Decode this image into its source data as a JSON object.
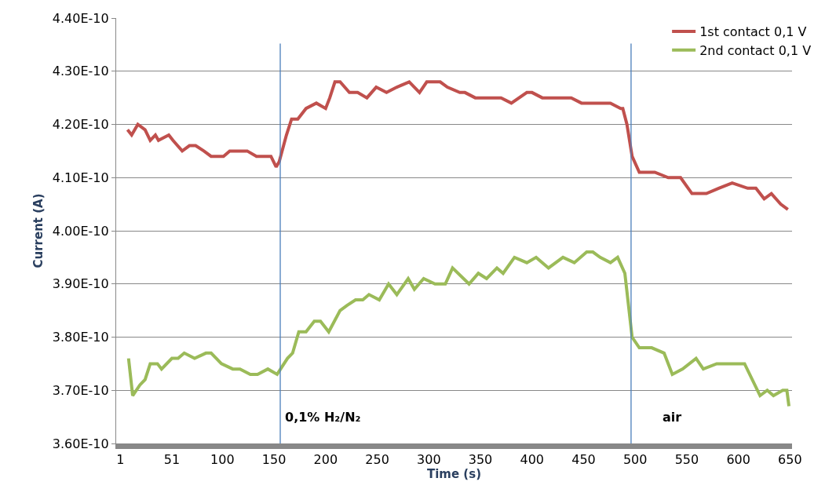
{
  "chart_data": {
    "type": "line",
    "xlabel": "Time (s)",
    "ylabel": "Current (A)",
    "xlim": [
      -3,
      652
    ],
    "xticks": [
      1,
      51,
      100,
      150,
      200,
      250,
      300,
      350,
      400,
      450,
      500,
      550,
      600,
      650
    ],
    "ylim": [
      3.6e-10,
      4.4e-10
    ],
    "yticks": [
      {
        "value": 3.6e-10,
        "label": "3.60E-10"
      },
      {
        "value": 3.7e-10,
        "label": "3.70E-10"
      },
      {
        "value": 3.8e-10,
        "label": "3.80E-10"
      },
      {
        "value": 3.9e-10,
        "label": "3.90E-10"
      },
      {
        "value": 4e-10,
        "label": "4.00E-10"
      },
      {
        "value": 4.1e-10,
        "label": "4.10E-10"
      },
      {
        "value": 4.2e-10,
        "label": "4.20E-10"
      },
      {
        "value": 4.3e-10,
        "label": "4.30E-10"
      },
      {
        "value": 4.4e-10,
        "label": "4.40E-10"
      }
    ],
    "grid": "y",
    "legend": "top right",
    "marker": "none",
    "line_style": "solid",
    "series": [
      {
        "name": "1st contact 0,1 V",
        "color": "#c0504d",
        "x": [
          8,
          12,
          18,
          25,
          30,
          35,
          38,
          48,
          52,
          61,
          68,
          74,
          82,
          89,
          97,
          101,
          107,
          114,
          120,
          124,
          133,
          140,
          147,
          152,
          155,
          162,
          167,
          173,
          181,
          191,
          200,
          204,
          209,
          214,
          223,
          231,
          240,
          249,
          259,
          269,
          281,
          291,
          298,
          311,
          318,
          330,
          335,
          345,
          357,
          370,
          380,
          395,
          400,
          410,
          420,
          430,
          438,
          448,
          457,
          468,
          476,
          486,
          488,
          492,
          497,
          504,
          512,
          519,
          532,
          544,
          555,
          569,
          581,
          594,
          609,
          617,
          625,
          632,
          641,
          648
        ],
        "values": [
          4.19e-10,
          4.18e-10,
          4.2e-10,
          4.19e-10,
          4.17e-10,
          4.18e-10,
          4.17e-10,
          4.18e-10,
          4.17e-10,
          4.15e-10,
          4.16e-10,
          4.16e-10,
          4.15e-10,
          4.14e-10,
          4.14e-10,
          4.14e-10,
          4.15e-10,
          4.15e-10,
          4.15e-10,
          4.15e-10,
          4.14e-10,
          4.14e-10,
          4.14e-10,
          4.12e-10,
          4.13e-10,
          4.18e-10,
          4.21e-10,
          4.21e-10,
          4.23e-10,
          4.24e-10,
          4.23e-10,
          4.25e-10,
          4.28e-10,
          4.28e-10,
          4.26e-10,
          4.26e-10,
          4.25e-10,
          4.27e-10,
          4.26e-10,
          4.27e-10,
          4.28e-10,
          4.26e-10,
          4.28e-10,
          4.28e-10,
          4.27e-10,
          4.26e-10,
          4.26e-10,
          4.25e-10,
          4.25e-10,
          4.25e-10,
          4.24e-10,
          4.26e-10,
          4.26e-10,
          4.25e-10,
          4.25e-10,
          4.25e-10,
          4.25e-10,
          4.24e-10,
          4.24e-10,
          4.24e-10,
          4.24e-10,
          4.23e-10,
          4.23e-10,
          4.2e-10,
          4.14e-10,
          4.11e-10,
          4.11e-10,
          4.11e-10,
          4.1e-10,
          4.1e-10,
          4.07e-10,
          4.07e-10,
          4.08e-10,
          4.09e-10,
          4.08e-10,
          4.08e-10,
          4.06e-10,
          4.07e-10,
          4.05e-10,
          4.04e-10
        ]
      },
      {
        "name": "2nd contact 0,1 V",
        "color": "#9bbb59",
        "x": [
          9,
          13,
          20,
          25,
          30,
          37,
          41,
          51,
          57,
          63,
          73,
          84,
          89,
          99,
          110,
          117,
          127,
          134,
          144,
          153,
          163,
          168,
          174,
          181,
          189,
          195,
          203,
          214,
          221,
          229,
          236,
          242,
          252,
          261,
          269,
          280,
          286,
          295,
          306,
          316,
          323,
          339,
          348,
          356,
          366,
          372,
          383,
          395,
          404,
          416,
          430,
          441,
          453,
          459,
          466,
          476,
          483,
          490,
          497,
          504,
          516,
          528,
          536,
          546,
          559,
          566,
          579,
          594,
          606,
          621,
          628,
          634,
          643,
          647,
          649
        ],
        "values": [
          3.76e-10,
          3.69e-10,
          3.71e-10,
          3.72e-10,
          3.75e-10,
          3.75e-10,
          3.74e-10,
          3.76e-10,
          3.76e-10,
          3.77e-10,
          3.76e-10,
          3.77e-10,
          3.77e-10,
          3.75e-10,
          3.74e-10,
          3.74e-10,
          3.73e-10,
          3.73e-10,
          3.74e-10,
          3.73e-10,
          3.76e-10,
          3.77e-10,
          3.81e-10,
          3.81e-10,
          3.83e-10,
          3.83e-10,
          3.81e-10,
          3.85e-10,
          3.86e-10,
          3.87e-10,
          3.87e-10,
          3.88e-10,
          3.87e-10,
          3.9e-10,
          3.88e-10,
          3.91e-10,
          3.89e-10,
          3.91e-10,
          3.9e-10,
          3.9e-10,
          3.93e-10,
          3.9e-10,
          3.92e-10,
          3.91e-10,
          3.93e-10,
          3.92e-10,
          3.95e-10,
          3.94e-10,
          3.95e-10,
          3.93e-10,
          3.95e-10,
          3.94e-10,
          3.96e-10,
          3.96e-10,
          3.95e-10,
          3.94e-10,
          3.95e-10,
          3.92e-10,
          3.8e-10,
          3.78e-10,
          3.78e-10,
          3.77e-10,
          3.73e-10,
          3.74e-10,
          3.76e-10,
          3.74e-10,
          3.75e-10,
          3.75e-10,
          3.75e-10,
          3.69e-10,
          3.7e-10,
          3.69e-10,
          3.7e-10,
          3.7e-10,
          3.67e-10
        ]
      }
    ],
    "ref_lines": [
      {
        "axis": "x",
        "value": 156,
        "color": "#4a7ebb"
      },
      {
        "axis": "x",
        "value": 496,
        "color": "#4a7ebb"
      }
    ],
    "annotations": [
      {
        "text": "0,1% H₂/N₂",
        "x": 156,
        "y": 3.65e-10
      },
      {
        "text": "air",
        "x": 496,
        "y": 3.65e-10
      }
    ]
  }
}
